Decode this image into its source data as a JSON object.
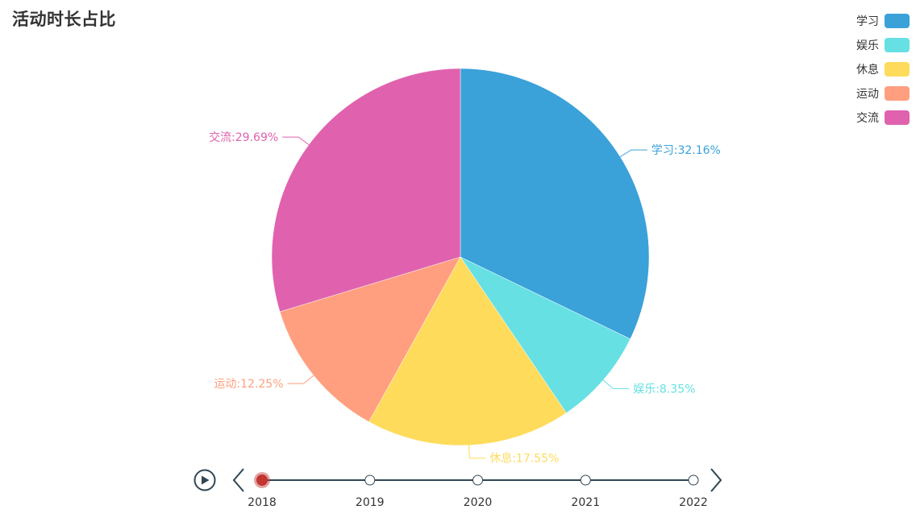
{
  "chart_data": {
    "type": "pie",
    "title": "活动时长占比",
    "categories": [
      "学习",
      "娱乐",
      "休息",
      "运动",
      "交流"
    ],
    "values": [
      32.16,
      8.35,
      17.55,
      12.25,
      29.69
    ],
    "unit": "%",
    "colors": [
      "#3aa1d9",
      "#67e0e3",
      "#ffdb5c",
      "#ff9f7f",
      "#e062ae"
    ],
    "labels": [
      "学习:32.16%",
      "娱乐:8.35%",
      "休息:17.55%",
      "运动:12.25%",
      "交流:29.69%"
    ],
    "legend_position": "top-right"
  },
  "timeline": {
    "years": [
      "2018",
      "2019",
      "2020",
      "2021",
      "2022"
    ],
    "current_index": 0,
    "current_color": "#c23531",
    "line_color": "#304654",
    "play_icon": "play-icon",
    "prev_icon": "chevron-left-icon",
    "next_icon": "chevron-right-icon"
  }
}
